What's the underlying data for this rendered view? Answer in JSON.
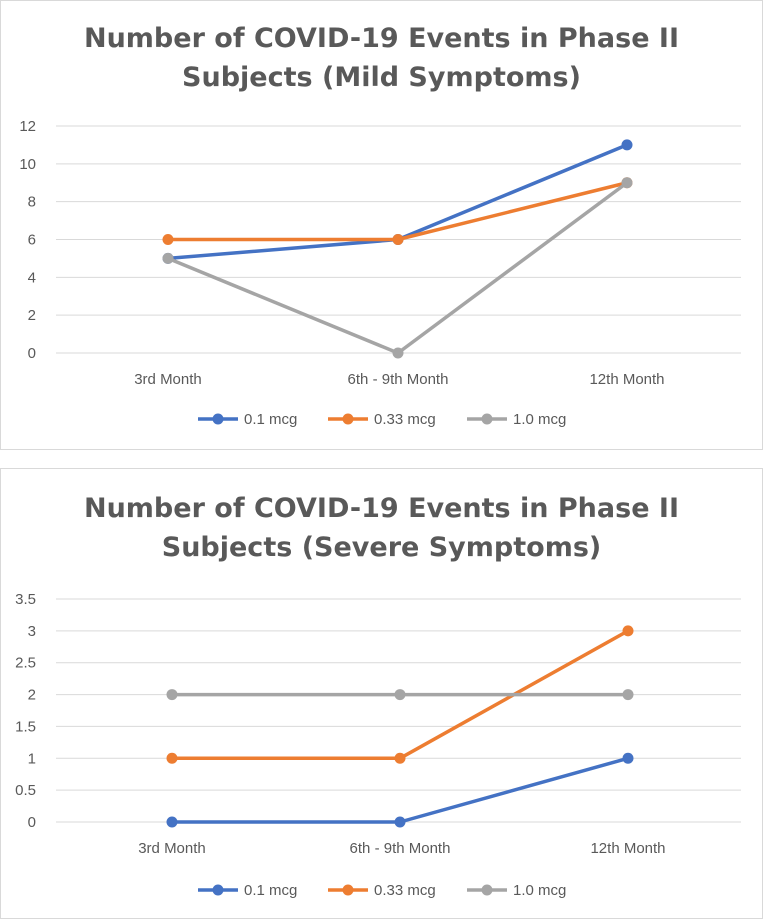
{
  "colors": {
    "series_0": "#4472c4",
    "series_1": "#ed7d31",
    "series_2": "#a5a5a5",
    "grid": "#d9d9d9",
    "text": "#595959"
  },
  "chart_data": [
    {
      "type": "line",
      "title": "Number of COVID-19 Events in Phase II Subjects (Mild Symptoms)",
      "title_lines": [
        "Number of COVID-19 Events in Phase II",
        "Subjects (Mild Symptoms)"
      ],
      "categories": [
        "3rd Month",
        "6th - 9th Month",
        "12th Month"
      ],
      "series": [
        {
          "name": "0.1 mcg",
          "values": [
            5,
            6,
            11
          ]
        },
        {
          "name": "0.33 mcg",
          "values": [
            6,
            6,
            9
          ]
        },
        {
          "name": "1.0 mcg",
          "values": [
            5,
            0,
            9
          ]
        }
      ],
      "ylim": [
        0,
        12
      ],
      "yticks": [
        "0",
        "2",
        "4",
        "6",
        "8",
        "10",
        "12"
      ],
      "xlabel": "",
      "ylabel": "",
      "grid": true,
      "legend": "bottom"
    },
    {
      "type": "line",
      "title": "Number of COVID-19 Events in Phase II Subjects (Severe Symptoms)",
      "title_lines": [
        "Number of COVID-19 Events in Phase II",
        "Subjects (Severe Symptoms)"
      ],
      "categories": [
        "3rd Month",
        "6th - 9th Month",
        "12th Month"
      ],
      "series": [
        {
          "name": "0.1 mcg",
          "values": [
            0,
            0,
            1
          ]
        },
        {
          "name": "0.33 mcg",
          "values": [
            1,
            1,
            3
          ]
        },
        {
          "name": "1.0 mcg",
          "values": [
            2,
            2,
            2
          ]
        }
      ],
      "ylim": [
        0,
        3.5
      ],
      "yticks": [
        "0",
        "0.5",
        "1",
        "1.5",
        "2",
        "2.5",
        "3",
        "3.5"
      ],
      "xlabel": "",
      "ylabel": "",
      "grid": true,
      "legend": "bottom"
    }
  ]
}
